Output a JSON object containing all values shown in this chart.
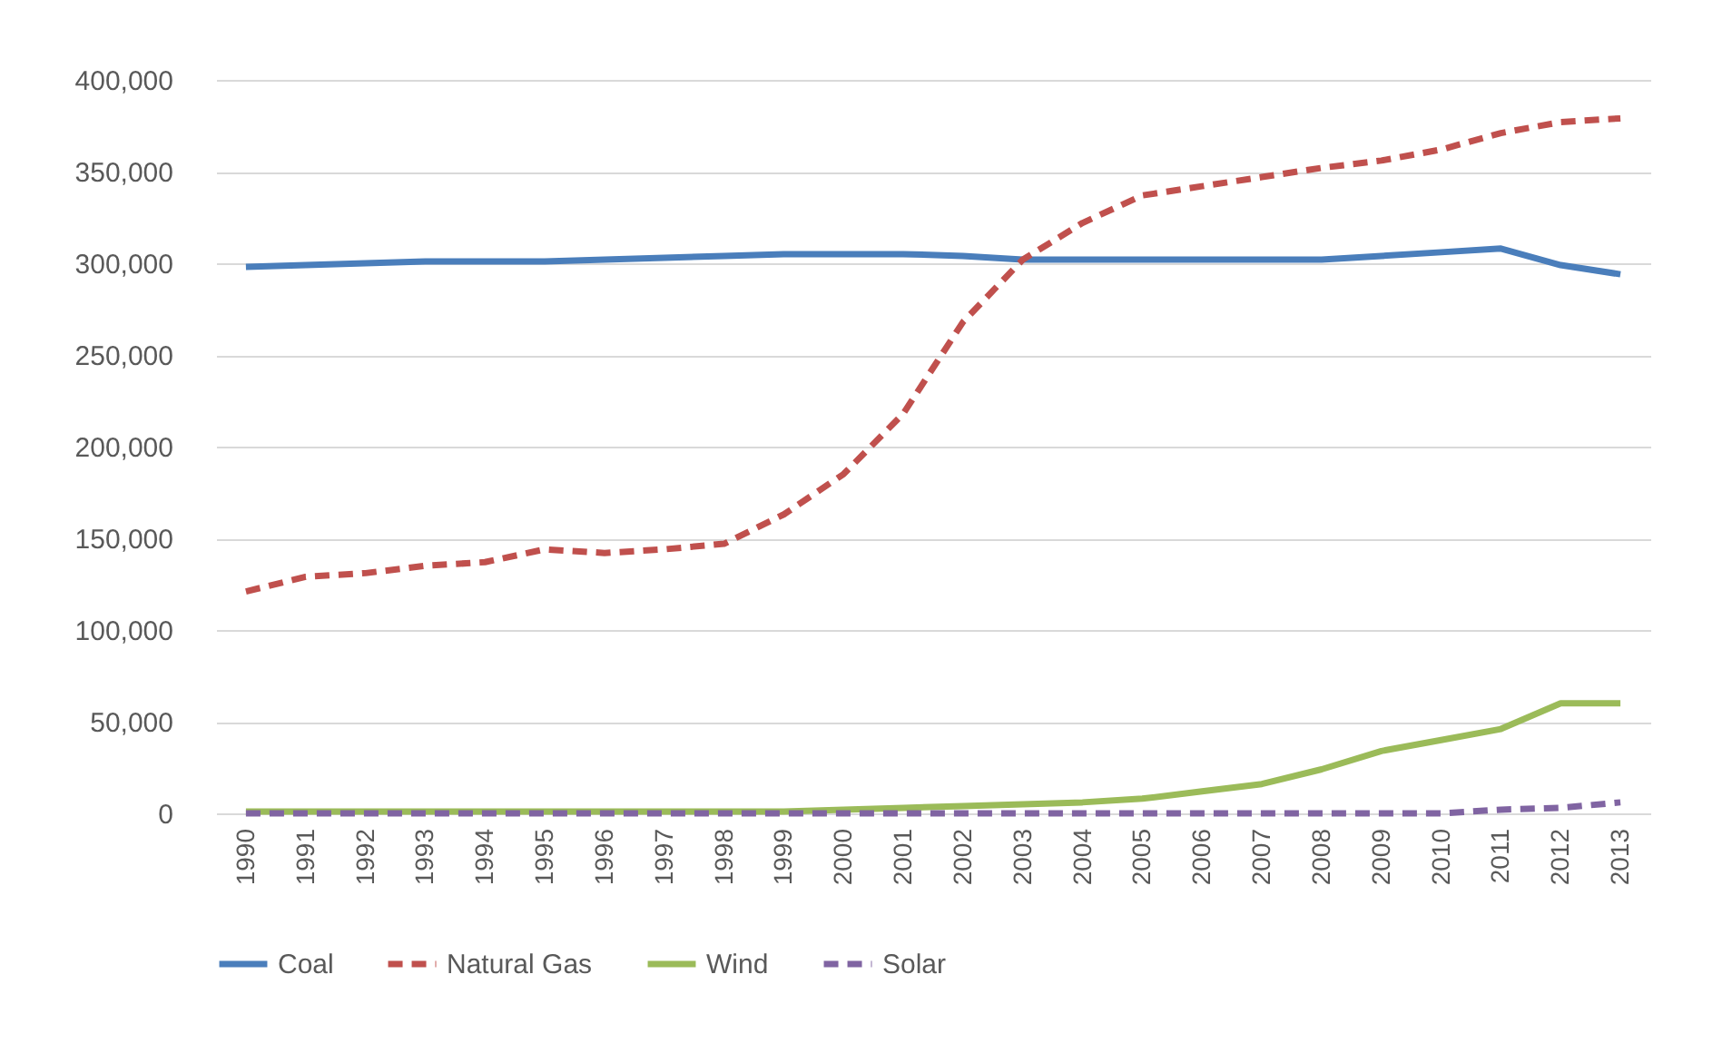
{
  "chart_data": {
    "type": "line",
    "categories": [
      "1990",
      "1991",
      "1992",
      "1993",
      "1994",
      "1995",
      "1996",
      "1997",
      "1998",
      "1999",
      "2000",
      "2001",
      "2002",
      "2003",
      "2004",
      "2005",
      "2006",
      "2007",
      "2008",
      "2009",
      "2010",
      "2011",
      "2012",
      "2013"
    ],
    "series": [
      {
        "name": "Coal",
        "color": "#4a7ebb",
        "line_style": "solid",
        "values": [
          298000,
          299000,
          300000,
          301000,
          301000,
          301000,
          302000,
          303000,
          304000,
          305000,
          305000,
          305000,
          304000,
          302000,
          302000,
          302000,
          302000,
          302000,
          302000,
          304000,
          306000,
          308000,
          299000,
          294000
        ]
      },
      {
        "name": "Natural Gas",
        "color": "#c0504d",
        "line_style": "dashed",
        "values": [
          121000,
          129000,
          131000,
          135000,
          137000,
          144000,
          142000,
          144000,
          147000,
          163000,
          185000,
          218000,
          268000,
          302000,
          322000,
          337000,
          342000,
          347000,
          352000,
          356000,
          362000,
          371000,
          377000,
          379000
        ]
      },
      {
        "name": "Wind",
        "color": "#9bbb59",
        "line_style": "solid",
        "values": [
          1000,
          1000,
          1000,
          1000,
          1000,
          1000,
          1000,
          1000,
          1000,
          1000,
          2000,
          3000,
          4000,
          5000,
          6000,
          8000,
          12000,
          16000,
          24000,
          34000,
          40000,
          46000,
          60000,
          60000
        ]
      },
      {
        "name": "Solar",
        "color": "#8064a2",
        "line_style": "dashed",
        "values": [
          0,
          0,
          0,
          0,
          0,
          0,
          0,
          0,
          0,
          0,
          0,
          0,
          0,
          0,
          0,
          0,
          0,
          0,
          0,
          0,
          0,
          2000,
          3000,
          6000
        ]
      }
    ],
    "ylim": [
      0,
      400000
    ],
    "yticks": [
      0,
      {
        "value": 50000,
        "label": "50,000"
      },
      {
        "value": 100000,
        "label": "100,000"
      },
      {
        "value": 150000,
        "label": "150,000"
      },
      {
        "value": 200000,
        "label": "200,000"
      },
      {
        "value": 250000,
        "label": "250,000"
      },
      {
        "value": 300000,
        "label": "300,000"
      },
      {
        "value": 350000,
        "label": "350,000"
      },
      {
        "value": 400000,
        "label": "400,000"
      }
    ],
    "grid": "y",
    "legend": "bottom"
  }
}
